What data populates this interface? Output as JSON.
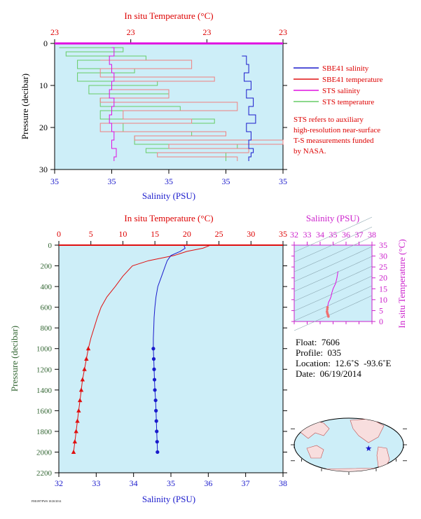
{
  "colors": {
    "panel_bg": "#cdeef8",
    "salinity": "#1a1acc",
    "temperature": "#e01010",
    "sts_salinity": "#e010e0",
    "sts_temperature": "#66cc66",
    "temp_axis_text": "#dd0000",
    "sal_axis_text": "#1a1acc",
    "pressure_axis_text": "#336633",
    "ts_axis_text": "#cc22cc"
  },
  "footer_note": "FM1097/PWS 10/20/2014",
  "chart_data": [
    {
      "type": "line",
      "title": "",
      "top_axis_label": "In situ Temperature (°C)",
      "top_ticks": [
        "23",
        "23",
        "23",
        "23"
      ],
      "bottom_axis_label": "Salinity (PSU)",
      "bottom_ticks": [
        "35",
        "35",
        "35",
        "35",
        "35"
      ],
      "left_axis_label": "Pressure (decibar)",
      "y_ticks": [
        "0",
        "10",
        "20",
        "30"
      ],
      "ylim": [
        30,
        0
      ],
      "legend": {
        "placement": "right",
        "entries": [
          {
            "label": "SBE41 salinity",
            "color": "#1a1acc"
          },
          {
            "label": "SBE41 temperature",
            "color": "#e01010"
          },
          {
            "label": "STS salinity",
            "color": "#e010e0"
          },
          {
            "label": "STS temperature",
            "color": "#66cc66"
          }
        ]
      },
      "note_lines": [
        "STS refers to auxiliary",
        "high-resolution near-surface",
        "T-S measurements funded",
        "by NASA."
      ],
      "series": [
        {
          "key": "sbe41_salinity",
          "x": [
            0.82,
            0.84,
            0.85,
            0.83,
            0.86,
            0.84,
            0.87,
            0.85,
            0.88,
            0.84,
            0.86,
            0.85,
            0.87,
            0.86,
            0.85
          ],
          "y": [
            3,
            5,
            7,
            9,
            11,
            13,
            15,
            17,
            19,
            21,
            23,
            25,
            26,
            27,
            28
          ]
        },
        {
          "key": "sbe41_temperature",
          "x": [
            0.2,
            0.6,
            0.2,
            0.7,
            0.25,
            0.5,
            0.2,
            0.8,
            0.3,
            0.6,
            0.2,
            0.75,
            0.35,
            1.0,
            0.5,
            0.85,
            0.45,
            0.8
          ],
          "y": [
            4,
            6,
            8,
            9,
            11,
            13,
            14,
            16,
            18,
            19,
            21,
            22,
            23,
            24,
            25,
            26,
            27,
            28
          ]
        },
        {
          "key": "sts_salinity",
          "x": [
            0.25,
            0.26,
            0.24,
            0.25,
            0.26,
            0.25,
            0.24,
            0.26,
            0.25,
            0.24,
            0.25,
            0.26,
            0.25,
            0.27,
            0.26
          ],
          "y": [
            1,
            3,
            5,
            7,
            9,
            11,
            13,
            15,
            17,
            19,
            21,
            23,
            25,
            27,
            28
          ]
        },
        {
          "key": "sts_temperature",
          "x": [
            0.02,
            0.3,
            0.05,
            0.4,
            0.1,
            0.35,
            0.1,
            0.45,
            0.15,
            0.5,
            0.2,
            0.55,
            0.2,
            0.7,
            0.3,
            0.6,
            0.35,
            0.8,
            0.4,
            0.75
          ],
          "y": [
            1,
            2,
            3,
            4,
            6,
            7,
            9,
            10,
            12,
            13,
            15,
            16,
            18,
            19,
            21,
            22,
            24,
            25,
            26,
            28
          ]
        }
      ]
    },
    {
      "type": "line",
      "title": "",
      "top_axis_label": "In situ Temperature (°C)",
      "top_ticks": [
        "0",
        "5",
        "10",
        "15",
        "20",
        "25",
        "30",
        "35"
      ],
      "temperature_range": [
        0,
        35
      ],
      "bottom_axis_label": "Salinity (PSU)",
      "bottom_ticks": [
        "32",
        "33",
        "34",
        "35",
        "36",
        "37",
        "38"
      ],
      "salinity_range": [
        32,
        38
      ],
      "left_axis_label": "Pressure (decibar)",
      "y_ticks": [
        "0",
        "200",
        "400",
        "600",
        "800",
        "1000",
        "1200",
        "1400",
        "1600",
        "1800",
        "2000",
        "2200"
      ],
      "ylim": [
        2200,
        0
      ],
      "temperature": {
        "pressure": [
          5,
          30,
          60,
          100,
          150,
          200,
          300,
          400,
          500,
          600,
          700,
          800,
          900,
          1000,
          1100,
          1200,
          1300,
          1400,
          1500,
          1600,
          1700,
          1800,
          1900,
          2000
        ],
        "values": [
          23.5,
          22.5,
          20.0,
          18.0,
          14.0,
          11.5,
          10.0,
          8.8,
          7.5,
          6.6,
          6.0,
          5.5,
          5.0,
          4.6,
          4.3,
          4.0,
          3.7,
          3.5,
          3.3,
          3.1,
          2.9,
          2.7,
          2.5,
          2.3
        ],
        "marker_from": 1000
      },
      "salinity": {
        "pressure": [
          5,
          30,
          60,
          100,
          150,
          200,
          300,
          400,
          500,
          600,
          700,
          800,
          900,
          1000,
          1100,
          1200,
          1300,
          1400,
          1500,
          1600,
          1700,
          1800,
          1900,
          2000
        ],
        "values": [
          35.35,
          35.38,
          35.25,
          35.0,
          34.9,
          34.85,
          34.75,
          34.65,
          34.6,
          34.57,
          34.55,
          34.54,
          34.53,
          34.53,
          34.54,
          34.55,
          34.56,
          34.57,
          34.59,
          34.6,
          34.61,
          34.62,
          34.63,
          34.64
        ],
        "marker_from": 1000
      }
    },
    {
      "type": "scatter",
      "title": "",
      "top_axis_label": "Salinity (PSU)",
      "top_ticks": [
        "32",
        "33",
        "34",
        "35",
        "36",
        "37",
        "38"
      ],
      "xlim": [
        32,
        38
      ],
      "right_axis_label": "In situ Temperature (°C)",
      "right_ticks": [
        "0",
        "5",
        "10",
        "15",
        "20",
        "25",
        "30",
        "35"
      ],
      "ylim": [
        0,
        35
      ],
      "ts_points": {
        "salinity": [
          35.38,
          35.3,
          35.2,
          35.0,
          34.9,
          34.85,
          34.75,
          34.65,
          34.6,
          34.57,
          34.55,
          34.53,
          34.55,
          34.58,
          34.62,
          34.64
        ],
        "temperature": [
          23.0,
          20.0,
          17.5,
          15.0,
          13.0,
          11.5,
          10.0,
          8.8,
          7.5,
          6.5,
          5.6,
          4.6,
          4.0,
          3.4,
          2.8,
          2.3
        ]
      }
    }
  ],
  "float_info": {
    "float": "Float:  7606",
    "profile": "Profile:  035",
    "location": "Location:  12.6˚S  -93.6˚E",
    "date": "Date:  06/19/2014"
  },
  "map": {
    "marker_lat": -12.6,
    "marker_lon": -93.6,
    "marker_color": "#1a1acc"
  }
}
